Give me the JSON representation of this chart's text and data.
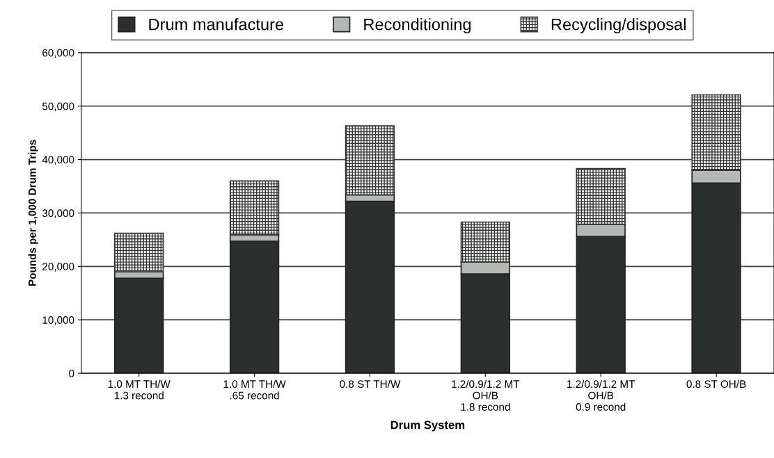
{
  "chart_data": {
    "type": "bar",
    "stacked": true,
    "xlabel": "Drum System",
    "ylabel": "Pounds per 1,000 Drum Trips",
    "categories": [
      "1.0 MT TH/W\n1.3 recond",
      "1.0 MT TH/W\n.65 recond",
      "0.8 ST TH/W",
      "1.2/0.9/1.2 MT\nOH/B\n1.8 recond",
      "1.2/0.9/1.2 MT\nOH/B\n0.9 recond",
      "0.8 ST OH/B"
    ],
    "series": [
      {
        "name": "Drum manufacture",
        "color": "#2b2f2d",
        "values": [
          17800,
          24700,
          32200,
          18600,
          25600,
          35600
        ]
      },
      {
        "name": "Reconditioning",
        "color": "#b4b8b4",
        "values": [
          1200,
          1200,
          1200,
          2200,
          2300,
          2400
        ]
      },
      {
        "name": "Recycling/disposal",
        "color": "#333333",
        "values": [
          7200,
          10100,
          12900,
          7500,
          10400,
          14100
        ]
      }
    ],
    "ylim": [
      0,
      60000
    ],
    "yticks": [
      {
        "value": 0,
        "label": "0"
      },
      {
        "value": 10000,
        "label": "10,000"
      },
      {
        "value": 20000,
        "label": "20,000"
      },
      {
        "value": 30000,
        "label": "30,000"
      },
      {
        "value": 40000,
        "label": "40,000"
      },
      {
        "value": 50000,
        "label": "50,000"
      },
      {
        "value": 60000,
        "label": "60,000"
      }
    ],
    "grid": "y",
    "legend": "top"
  }
}
